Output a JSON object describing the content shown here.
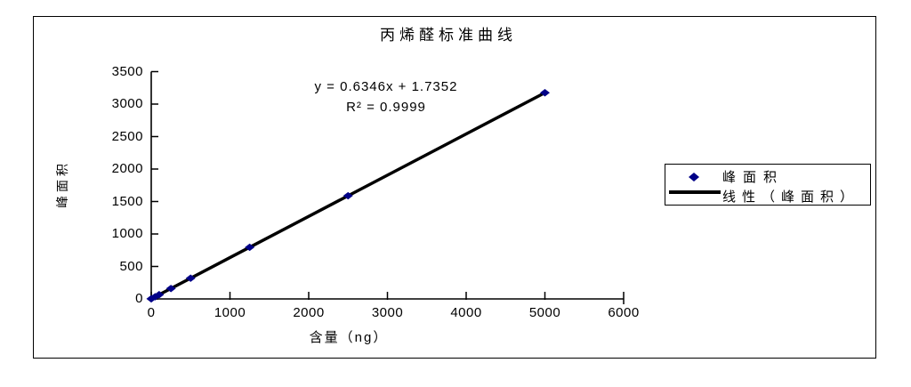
{
  "chart_data": {
    "type": "scatter",
    "title": "丙烯醛标准曲线",
    "xlabel": "含量（ng）",
    "ylabel": "峰面积",
    "xlim": [
      0,
      6000
    ],
    "ylim": [
      0,
      3500
    ],
    "x_ticks": [
      0,
      1000,
      2000,
      3000,
      4000,
      5000,
      6000
    ],
    "y_ticks": [
      0,
      500,
      1000,
      1500,
      2000,
      2500,
      3000,
      3500
    ],
    "grid": false,
    "legend_position": "right-middle",
    "series": [
      {
        "name": "峰面积",
        "marker": "diamond",
        "color": "#000087",
        "points": [
          [
            0,
            1.7
          ],
          [
            50,
            33.5
          ],
          [
            100,
            65.2
          ],
          [
            250,
            160.4
          ],
          [
            500,
            319.0
          ],
          [
            1250,
            795.0
          ],
          [
            2500,
            1588.2
          ],
          [
            5000,
            3174.7
          ]
        ]
      }
    ],
    "trendline": {
      "name": "线性（峰面积）",
      "color": "#000000",
      "slope": 0.6346,
      "intercept": 1.7352,
      "r2": 0.9999,
      "x_range": [
        0,
        5000
      ]
    },
    "annotations": [
      "y = 0.6346x + 1.7352",
      "R² = 0.9999"
    ],
    "legend_entries": [
      {
        "marker": "diamond",
        "label": "峰面积"
      },
      {
        "marker": "line",
        "label": "线性（峰面积）"
      }
    ],
    "colors": {
      "marker": "#000087",
      "trendline": "#000000",
      "axis": "#000000",
      "text": "#000000"
    }
  }
}
